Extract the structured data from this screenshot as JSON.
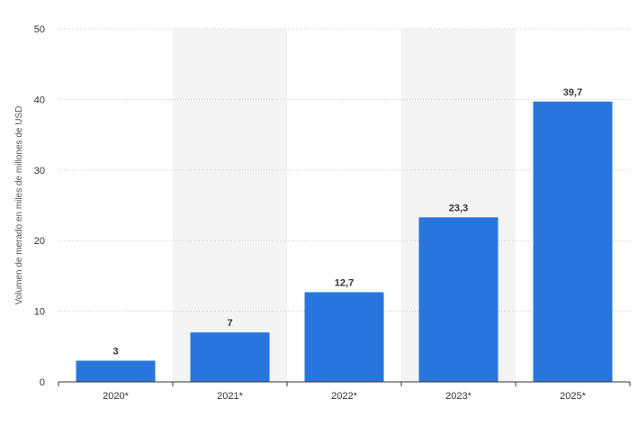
{
  "chart_data": {
    "type": "bar",
    "categories": [
      "2020*",
      "2021*",
      "2022*",
      "2023*",
      "2025*"
    ],
    "values": [
      3,
      7,
      12.7,
      23.3,
      39.7
    ],
    "data_labels": [
      "3",
      "7",
      "12,7",
      "23,3",
      "39,7"
    ],
    "xlabel": "",
    "ylabel": "Volumen de merado en miles de millones de USD",
    "ylim": [
      0,
      50
    ],
    "yticks": [
      0,
      10,
      20,
      30,
      40,
      50
    ],
    "ytick_labels": [
      "0",
      "10",
      "20",
      "30",
      "40",
      "50"
    ],
    "grid": true,
    "grid_style": "dotted",
    "legend": "none",
    "colors": {
      "bar": "#2876dd",
      "band": "#f4f4f4",
      "grid": "#c8c8c8",
      "axis": "#333333",
      "text": "#333333"
    }
  }
}
